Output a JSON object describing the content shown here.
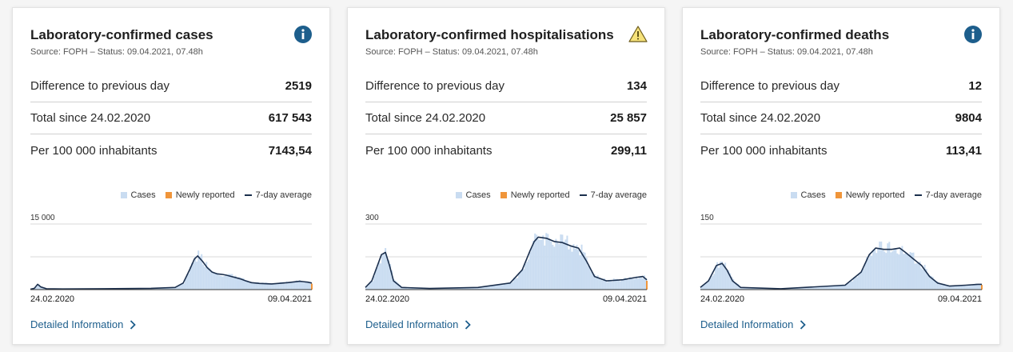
{
  "colors": {
    "cases": "#c9dcf1",
    "newly_reported": "#f0953a",
    "average": "#1b2f4d",
    "info": "#1d5e8c",
    "warning_fill": "#f6e27a",
    "warning_stroke": "#6b5a1a",
    "link": "#1d5e8c"
  },
  "cards": [
    {
      "title": "Laboratory-confirmed cases",
      "source": "Source: FOPH – Status: 09.04.2021, 07.48h",
      "status_icon": "info-icon",
      "stats": [
        {
          "label": "Difference to previous day",
          "value": "2519"
        },
        {
          "label": "Total since 24.02.2020",
          "value": "617 543"
        },
        {
          "label": "Per 100 000 inhabitants",
          "value": "7143,54"
        }
      ],
      "legend": {
        "cases": "Cases",
        "newly": "Newly reported",
        "avg": "7-day average"
      },
      "link": "Detailed Information"
    },
    {
      "title": "Laboratory-confirmed hospitalisations",
      "source": "Source: FOPH – Status: 09.04.2021, 07.48h",
      "status_icon": "warning-icon",
      "stats": [
        {
          "label": "Difference to previous day",
          "value": "134"
        },
        {
          "label": "Total since 24.02.2020",
          "value": "25 857"
        },
        {
          "label": "Per 100 000 inhabitants",
          "value": "299,11"
        }
      ],
      "legend": {
        "cases": "Cases",
        "newly": "Newly reported",
        "avg": "7-day average"
      },
      "link": "Detailed Information"
    },
    {
      "title": "Laboratory-confirmed deaths",
      "source": "Source: FOPH – Status: 09.04.2021, 07.48h",
      "status_icon": "info-icon",
      "stats": [
        {
          "label": "Difference to previous day",
          "value": "12"
        },
        {
          "label": "Total since 24.02.2020",
          "value": "9804"
        },
        {
          "label": "Per 100 000 inhabitants",
          "value": "113,41"
        }
      ],
      "legend": {
        "cases": "Cases",
        "newly": "Newly reported",
        "avg": "7-day average"
      },
      "link": "Detailed Information"
    }
  ],
  "chart_data": [
    {
      "type": "area",
      "title": "",
      "xlabel": "",
      "ylabel": "",
      "x_start": "24.02.2020",
      "x_end": "09.04.2021",
      "x_tick_labels": [
        "24.02.2020",
        "09.04.2021"
      ],
      "y_tick_labels": [
        "15 000"
      ],
      "ylim": [
        0,
        15000
      ],
      "grid": true,
      "legend_position": "top-right",
      "series": [
        {
          "name": "Cases",
          "kind": "bars"
        },
        {
          "name": "Newly reported",
          "kind": "bars"
        },
        {
          "name": "7-day average",
          "kind": "line"
        }
      ],
      "avg_points": [
        [
          0,
          100
        ],
        [
          5,
          300
        ],
        [
          9,
          1200
        ],
        [
          13,
          600
        ],
        [
          20,
          200
        ],
        [
          40,
          150
        ],
        [
          90,
          200
        ],
        [
          150,
          300
        ],
        [
          180,
          500
        ],
        [
          190,
          1500
        ],
        [
          198,
          4500
        ],
        [
          204,
          7000
        ],
        [
          208,
          7700
        ],
        [
          214,
          6500
        ],
        [
          220,
          5000
        ],
        [
          226,
          4000
        ],
        [
          232,
          3600
        ],
        [
          238,
          3500
        ],
        [
          244,
          3300
        ],
        [
          250,
          3000
        ],
        [
          256,
          2700
        ],
        [
          262,
          2400
        ],
        [
          268,
          2000
        ],
        [
          275,
          1600
        ],
        [
          285,
          1400
        ],
        [
          300,
          1300
        ],
        [
          320,
          1600
        ],
        [
          335,
          1900
        ],
        [
          345,
          1700
        ],
        [
          350,
          1500
        ]
      ]
    },
    {
      "type": "area",
      "title": "",
      "xlabel": "",
      "ylabel": "",
      "x_start": "24.02.2020",
      "x_end": "09.04.2021",
      "x_tick_labels": [
        "24.02.2020",
        "09.04.2021"
      ],
      "y_tick_labels": [
        "300"
      ],
      "ylim": [
        0,
        300
      ],
      "grid": true,
      "legend_position": "top-right",
      "series": [
        {
          "name": "Cases",
          "kind": "bars"
        },
        {
          "name": "Newly reported",
          "kind": "bars"
        },
        {
          "name": "7-day average",
          "kind": "line"
        }
      ],
      "avg_points": [
        [
          0,
          10
        ],
        [
          8,
          40
        ],
        [
          15,
          110
        ],
        [
          20,
          160
        ],
        [
          25,
          170
        ],
        [
          30,
          110
        ],
        [
          35,
          40
        ],
        [
          45,
          10
        ],
        [
          80,
          5
        ],
        [
          140,
          10
        ],
        [
          180,
          30
        ],
        [
          195,
          90
        ],
        [
          205,
          180
        ],
        [
          210,
          220
        ],
        [
          215,
          240
        ],
        [
          225,
          235
        ],
        [
          235,
          220
        ],
        [
          245,
          215
        ],
        [
          255,
          200
        ],
        [
          265,
          190
        ],
        [
          275,
          130
        ],
        [
          285,
          60
        ],
        [
          300,
          40
        ],
        [
          320,
          45
        ],
        [
          335,
          55
        ],
        [
          345,
          60
        ],
        [
          350,
          45
        ]
      ]
    },
    {
      "type": "area",
      "title": "",
      "xlabel": "",
      "ylabel": "",
      "x_start": "24.02.2020",
      "x_end": "09.04.2021",
      "x_tick_labels": [
        "24.02.2020",
        "09.04.2021"
      ],
      "y_tick_labels": [
        "150"
      ],
      "ylim": [
        0,
        150
      ],
      "grid": true,
      "legend_position": "top-right",
      "series": [
        {
          "name": "Cases",
          "kind": "bars"
        },
        {
          "name": "Newly reported",
          "kind": "bars"
        },
        {
          "name": "7-day average",
          "kind": "line"
        }
      ],
      "avg_points": [
        [
          0,
          5
        ],
        [
          10,
          20
        ],
        [
          20,
          55
        ],
        [
          27,
          60
        ],
        [
          33,
          45
        ],
        [
          40,
          20
        ],
        [
          50,
          5
        ],
        [
          100,
          2
        ],
        [
          180,
          10
        ],
        [
          200,
          40
        ],
        [
          210,
          80
        ],
        [
          218,
          95
        ],
        [
          228,
          92
        ],
        [
          238,
          92
        ],
        [
          248,
          95
        ],
        [
          255,
          85
        ],
        [
          265,
          70
        ],
        [
          275,
          55
        ],
        [
          285,
          30
        ],
        [
          295,
          15
        ],
        [
          310,
          8
        ],
        [
          330,
          10
        ],
        [
          345,
          12
        ],
        [
          350,
          12
        ]
      ]
    }
  ]
}
